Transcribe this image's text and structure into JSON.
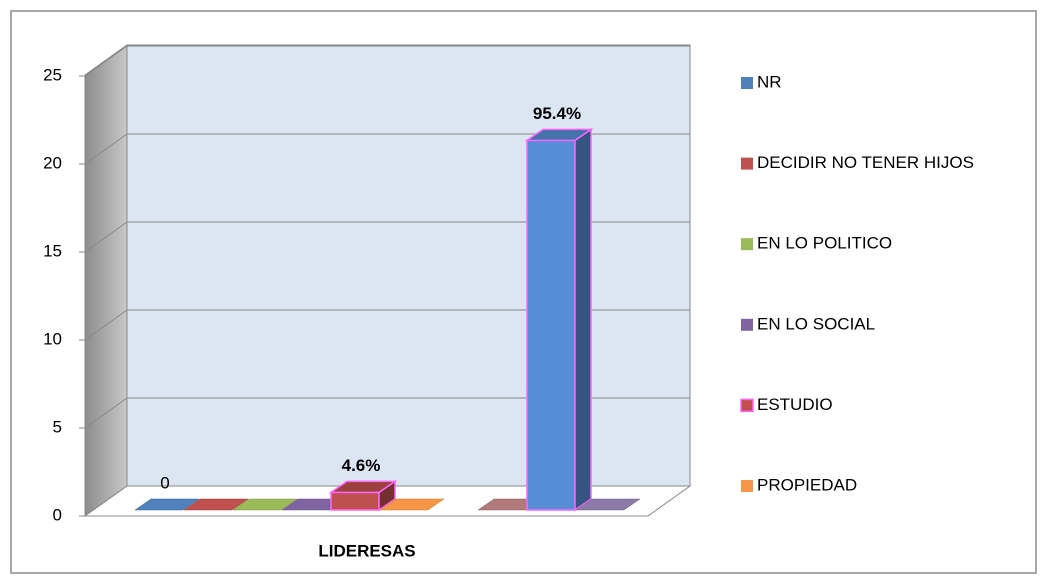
{
  "chart_data": {
    "type": "bar3d",
    "categories": [
      "LIDERESAS"
    ],
    "series": [
      {
        "name": "NR",
        "color": "#4f81bd",
        "values": [
          0
        ],
        "value_labels": [
          "0"
        ]
      },
      {
        "name": "DECIDIR NO TENER HIJOS",
        "color": "#c0504d",
        "values": [
          0
        ]
      },
      {
        "name": "EN LO POLITICO",
        "color": "#9bbb59",
        "values": [
          0
        ]
      },
      {
        "name": "EN LO SOCIAL",
        "color": "#8064a2",
        "values": [
          0
        ]
      },
      {
        "name": "ESTUDIO",
        "color": "#c0504d",
        "values": [
          1
        ],
        "value_labels": [
          "4.6%"
        ]
      },
      {
        "name": "PROPIEDAD",
        "color": "#f79646",
        "values": [
          0
        ]
      },
      {
        "color": "#b07a7a",
        "values": [
          0
        ]
      },
      {
        "color": "#558ed5",
        "values": [
          21
        ],
        "value_labels": [
          "95.4%"
        ]
      },
      {
        "color": "#8c7aa8",
        "values": [
          0
        ]
      }
    ],
    "ylim": [
      0,
      25
    ],
    "yticks": [
      0,
      5,
      10,
      15,
      20,
      25
    ],
    "grid": true
  }
}
